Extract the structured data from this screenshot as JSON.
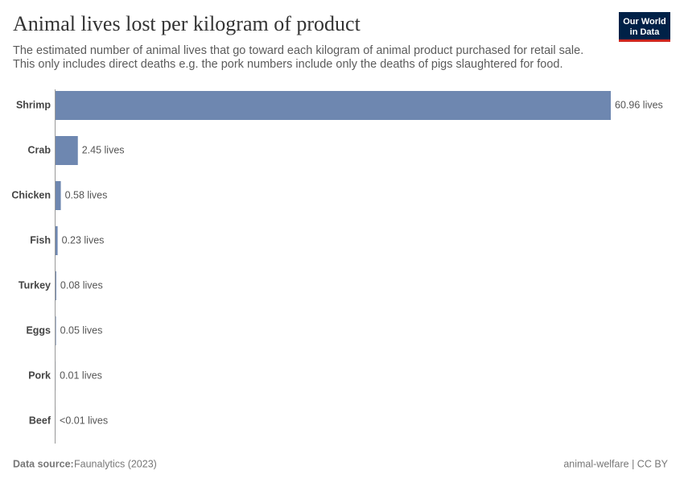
{
  "chart_data": {
    "type": "hbar",
    "title": "Animal lives lost per kilogram of product",
    "subtitle": [
      "The estimated number of animal lives that go toward each kilogram of animal product purchased for retail sale.",
      "This only includes direct deaths e.g. the pork numbers include only the deaths of pigs slaughtered for food."
    ],
    "categories": [
      "Shrimp",
      "Crab",
      "Chicken",
      "Fish",
      "Turkey",
      "Eggs",
      "Pork",
      "Beef"
    ],
    "values": [
      60.96,
      2.45,
      0.58,
      0.23,
      0.08,
      0.05,
      0.01,
      0.004
    ],
    "value_labels": [
      "60.96 lives",
      "2.45 lives",
      "0.58 lives",
      "0.23 lives",
      "0.08 lives",
      "0.05 lives",
      "0.01 lives",
      "<0.01 lives"
    ],
    "color": "#6e87b0",
    "xlim": [
      0,
      61
    ],
    "source_label": "Data source:",
    "source": "Faunalytics (2023)",
    "note": "animal-welfare | CC BY",
    "logo": [
      "Our World",
      "in Data"
    ]
  }
}
